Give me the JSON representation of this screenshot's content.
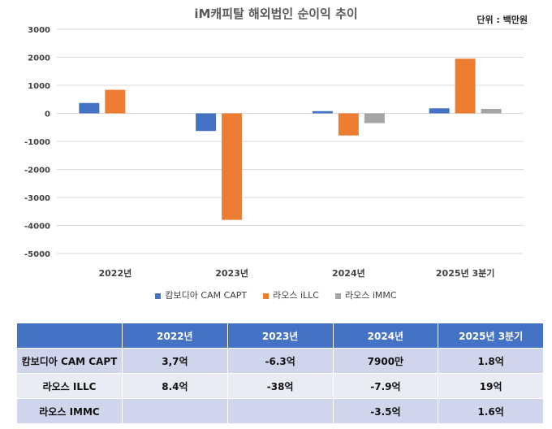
{
  "chart_data": {
    "type": "bar",
    "title": "iM캐피탈 해외법인 순이익 추이",
    "unit": "단위 : 백만원",
    "categories": [
      "2022년",
      "2023년",
      "2024년",
      "2025년 3분기"
    ],
    "ylim": [
      -5000,
      3000
    ],
    "yticks": [
      3000,
      2000,
      1000,
      0,
      -1000,
      -2000,
      -3000,
      -4000,
      -5000
    ],
    "grid": true,
    "legend_position": "bottom",
    "series": [
      {
        "name": "캄보디아 CAM CAPT",
        "color": "#4472c4",
        "values": [
          370,
          -630,
          79,
          180
        ]
      },
      {
        "name": "라오스 iLLC",
        "color": "#ed7d31",
        "values": [
          840,
          -3800,
          -790,
          1950
        ]
      },
      {
        "name": "라오스 iMMC",
        "color": "#a5a5a5",
        "values": [
          null,
          null,
          -350,
          160
        ]
      }
    ]
  },
  "table": {
    "header": [
      "",
      "2022년",
      "2023년",
      "2024년",
      "2025년 3분기"
    ],
    "rows": [
      [
        "캄보디아 CAM CAPT",
        "3,7억",
        "-6.3억",
        "7900만",
        "1.8억"
      ],
      [
        "라오스 ILLC",
        "8.4억",
        "-38억",
        "-7.9억",
        "19억"
      ],
      [
        "라오스 IMMC",
        "",
        "",
        "-3.5억",
        "1.6억"
      ]
    ]
  }
}
